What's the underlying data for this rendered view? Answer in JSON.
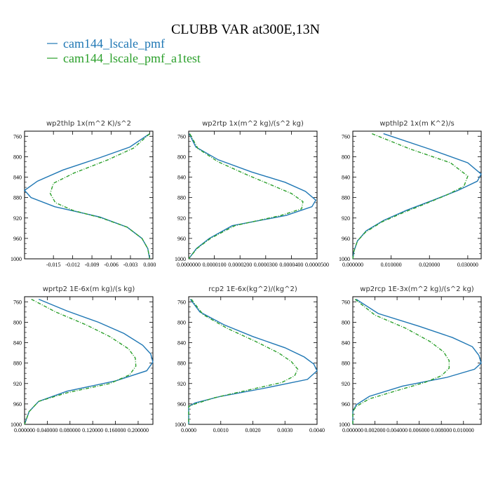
{
  "figure": {
    "title": "CLUBB VAR at300E,13N",
    "legend": [
      {
        "label": "cam144_lscale_pmf",
        "color": "#1f77b4"
      },
      {
        "label": "cam144_lscale_pmf_a1test",
        "color": "#2ca02c"
      }
    ]
  },
  "chart_data": [
    {
      "type": "line",
      "title": "wp2thlp   1x(m^2 K)/s^2",
      "xlim": [
        -0.0195,
        0.0005
      ],
      "xticks": [
        -0.015,
        -0.012,
        -0.009,
        -0.006,
        -0.003,
        0.0
      ],
      "xtick_labels": [
        "-0.015",
        "-0.012",
        "-0.009",
        "-0.006",
        "-0.003",
        "0.000"
      ],
      "ylim": [
        1000,
        750
      ],
      "yticks": [
        760,
        800,
        840,
        880,
        920,
        960,
        1000
      ],
      "series": [
        {
          "name": "cam144_lscale_pmf",
          "color": "#1f77b4",
          "dashed": false,
          "y": [
            755,
            781,
            802,
            826,
            848,
            866,
            880,
            898,
            918,
            938,
            960,
            980,
            1000
          ],
          "x": [
            0.0,
            -0.0031,
            -0.0078,
            -0.0135,
            -0.0175,
            -0.0195,
            -0.0185,
            -0.0148,
            -0.0078,
            -0.0035,
            -0.0012,
            -0.0003,
            0.0
          ]
        },
        {
          "name": "cam144_lscale_pmf_a1test",
          "color": "#2ca02c",
          "dashed": true,
          "y": [
            755,
            783,
            806,
            832,
            852,
            872,
            890,
            905,
            920,
            938,
            960,
            980,
            1000
          ],
          "x": [
            0.0,
            -0.0025,
            -0.0065,
            -0.0118,
            -0.015,
            -0.0155,
            -0.0147,
            -0.012,
            -0.0075,
            -0.0035,
            -0.0012,
            -0.0003,
            0.0
          ]
        }
      ]
    },
    {
      "type": "line",
      "title": "wp2rtp   1x(m^2 kg)/(s^2 kg)",
      "xlim": [
        0.0,
        5e-05
      ],
      "xticks": [
        0.0,
        1e-05,
        2e-05,
        3e-05,
        4e-05,
        5e-05
      ],
      "xtick_labels": [
        "0.0000000",
        "0.0000100",
        "0.0000200",
        "0.0000300",
        "0.0000400",
        "0.0000500"
      ],
      "ylim": [
        1000,
        750
      ],
      "yticks": [
        760,
        800,
        840,
        880,
        920,
        960,
        1000
      ],
      "series": [
        {
          "name": "cam144_lscale_pmf",
          "color": "#1f77b4",
          "dashed": false,
          "y": [
            755,
            781,
            806,
            830,
            850,
            868,
            885,
            898,
            915,
            935,
            960,
            980,
            1000
          ],
          "x": [
            2e-07,
            2.8e-06,
            1.15e-05,
            2.45e-05,
            3.75e-05,
            4.55e-05,
            4.95e-05,
            4.8e-05,
            3.8e-05,
            1.7e-05,
            8e-06,
            3e-06,
            0.0
          ]
        },
        {
          "name": "cam144_lscale_pmf_a1test",
          "color": "#2ca02c",
          "dashed": true,
          "y": [
            755,
            784,
            810,
            835,
            856,
            872,
            888,
            902,
            915,
            935,
            960,
            980,
            1000
          ],
          "x": [
            4e-07,
            3.6e-06,
            1.15e-05,
            2.25e-05,
            3.25e-05,
            4e-05,
            4.45e-05,
            4.4e-05,
            3.6e-05,
            1.8e-05,
            8.5e-06,
            3.2e-06,
            0.0
          ]
        }
      ]
    },
    {
      "type": "line",
      "title": "wpthlp2   1x(m K^2)/s",
      "xlim": [
        0.0,
        0.0335
      ],
      "xticks": [
        0.0,
        0.01,
        0.02,
        0.03
      ],
      "xtick_labels": [
        "0.000000",
        "0.010000",
        "0.020000",
        "0.030000"
      ],
      "ylim": [
        1000,
        750
      ],
      "yticks": [
        760,
        800,
        840,
        880,
        920,
        960,
        1000
      ],
      "series": [
        {
          "name": "cam144_lscale_pmf",
          "color": "#1f77b4",
          "dashed": false,
          "y": [
            755,
            785,
            812,
            834,
            848,
            866,
            885,
            905,
            925,
            945,
            965,
            985,
            1000
          ],
          "x": [
            0.008,
            0.02,
            0.03,
            0.0335,
            0.0325,
            0.0275,
            0.021,
            0.014,
            0.008,
            0.0035,
            0.0012,
            0.0003,
            0.0
          ]
        },
        {
          "name": "cam144_lscale_pmf_a1test",
          "color": "#2ca02c",
          "dashed": true,
          "y": [
            755,
            785,
            812,
            838,
            858,
            875,
            892,
            910,
            928,
            948,
            965,
            985,
            1000
          ],
          "x": [
            0.005,
            0.015,
            0.0255,
            0.03,
            0.029,
            0.0245,
            0.019,
            0.013,
            0.0075,
            0.0033,
            0.0012,
            0.0003,
            0.0
          ]
        }
      ]
    },
    {
      "type": "line",
      "title": "wprtp2   1E-6x(m kg)/(s kg)",
      "xlim": [
        0.0,
        0.226
      ],
      "xticks": [
        0.0,
        0.04,
        0.08,
        0.12,
        0.16,
        0.2
      ],
      "xtick_labels": [
        "0.000000",
        "0.040000",
        "0.080000",
        "0.120000",
        "0.160000",
        "0.200000"
      ],
      "ylim": [
        1000,
        750
      ],
      "yticks": [
        760,
        800,
        840,
        880,
        920,
        960,
        1000
      ],
      "series": [
        {
          "name": "cam144_lscale_pmf",
          "color": "#1f77b4",
          "dashed": false,
          "y": [
            755,
            778,
            800,
            822,
            845,
            862,
            878,
            895,
            915,
            935,
            955,
            975,
            1000
          ],
          "x": [
            0.025,
            0.075,
            0.13,
            0.175,
            0.208,
            0.222,
            0.226,
            0.215,
            0.16,
            0.075,
            0.025,
            0.008,
            0.0
          ]
        },
        {
          "name": "cam144_lscale_pmf_a1test",
          "color": "#2ca02c",
          "dashed": true,
          "y": [
            755,
            780,
            805,
            828,
            852,
            870,
            886,
            903,
            920,
            938,
            955,
            975,
            1000
          ],
          "x": [
            0.012,
            0.055,
            0.108,
            0.15,
            0.183,
            0.195,
            0.196,
            0.185,
            0.15,
            0.075,
            0.025,
            0.008,
            0.0
          ]
        }
      ]
    },
    {
      "type": "line",
      "title": "rcp2   1E-6x(kg^2)/(kg^2)",
      "xlim": [
        0.0,
        0.004
      ],
      "xticks": [
        0.0,
        0.001,
        0.002,
        0.003,
        0.004
      ],
      "xtick_labels": [
        "0.0000",
        "0.0010",
        "0.0020",
        "0.0030",
        "0.0040"
      ],
      "ylim": [
        1000,
        750
      ],
      "yticks": [
        760,
        800,
        840,
        880,
        920,
        960,
        1000
      ],
      "series": [
        {
          "name": "cam144_lscale_pmf",
          "color": "#1f77b4",
          "dashed": false,
          "y": [
            755,
            780,
            805,
            828,
            850,
            868,
            882,
            895,
            912,
            930,
            945,
            958,
            965,
            1000
          ],
          "x": [
            5e-05,
            0.00035,
            0.0011,
            0.002,
            0.003,
            0.0036,
            0.0039,
            0.004,
            0.0037,
            0.0023,
            0.001,
            0.0002,
            0.0,
            0.0
          ]
        },
        {
          "name": "cam144_lscale_pmf_a1test",
          "color": "#2ca02c",
          "dashed": true,
          "y": [
            755,
            785,
            812,
            838,
            860,
            877,
            892,
            905,
            918,
            935,
            948,
            960,
            965,
            1000
          ],
          "x": [
            8e-05,
            0.00045,
            0.0012,
            0.0021,
            0.0028,
            0.0032,
            0.0034,
            0.0033,
            0.0029,
            0.0017,
            0.0008,
            0.0002,
            0.0,
            0.0
          ]
        }
      ]
    },
    {
      "type": "line",
      "title": "wp2rcp   1E-3x(m^2 kg)/(s^2 kg)",
      "xlim": [
        0.0,
        0.0116
      ],
      "xticks": [
        0.0,
        0.002,
        0.004,
        0.006,
        0.008,
        0.01
      ],
      "xtick_labels": [
        "0.000000",
        "0.002000",
        "0.004000",
        "0.006000",
        "0.008000",
        "0.010000"
      ],
      "ylim": [
        1000,
        750
      ],
      "yticks": [
        760,
        800,
        840,
        880,
        920,
        960,
        1000
      ],
      "series": [
        {
          "name": "cam144_lscale_pmf",
          "color": "#1f77b4",
          "dashed": false,
          "y": [
            755,
            783,
            808,
            830,
            848,
            865,
            880,
            892,
            908,
            925,
            945,
            962,
            975,
            1000
          ],
          "x": [
            0.0003,
            0.0023,
            0.006,
            0.009,
            0.0108,
            0.0114,
            0.0116,
            0.011,
            0.0085,
            0.0045,
            0.0015,
            0.0003,
            0.0,
            0.0
          ]
        },
        {
          "name": "cam144_lscale_pmf_a1test",
          "color": "#2ca02c",
          "dashed": true,
          "y": [
            755,
            786,
            812,
            838,
            858,
            875,
            890,
            905,
            918,
            935,
            950,
            965,
            975,
            1000
          ],
          "x": [
            0.0002,
            0.002,
            0.0048,
            0.007,
            0.0082,
            0.0087,
            0.0087,
            0.008,
            0.0065,
            0.0038,
            0.0015,
            0.0003,
            0.0,
            0.0
          ]
        }
      ]
    }
  ]
}
